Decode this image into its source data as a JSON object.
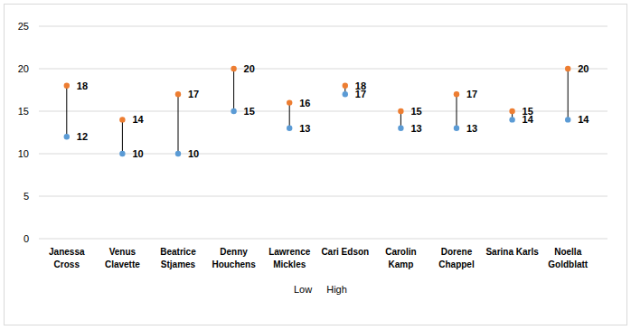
{
  "chart_data": {
    "type": "dot_range",
    "categories": [
      "Janessa Cross",
      "Venus Clavette",
      "Beatrice Stjames",
      "Denny Houchens",
      "Lawrence Mickles",
      "Cari Edson",
      "Carolin Kamp",
      "Dorene Chappel",
      "Sarina Karls",
      "Noella Goldblatt"
    ],
    "series": [
      {
        "name": "Low",
        "color": "#5b9bd5",
        "marker": "circle",
        "values": [
          12,
          10,
          10,
          15,
          13,
          17,
          13,
          13,
          14,
          14
        ]
      },
      {
        "name": "High",
        "color": "#ed7d31",
        "marker": "circle",
        "values": [
          18,
          14,
          17,
          20,
          16,
          18,
          15,
          17,
          15,
          20
        ]
      }
    ],
    "ylim": [
      0,
      25
    ],
    "yticks": [
      0,
      5,
      10,
      15,
      20,
      25
    ],
    "grid": true,
    "legend": "bottom",
    "data_labels": true
  }
}
